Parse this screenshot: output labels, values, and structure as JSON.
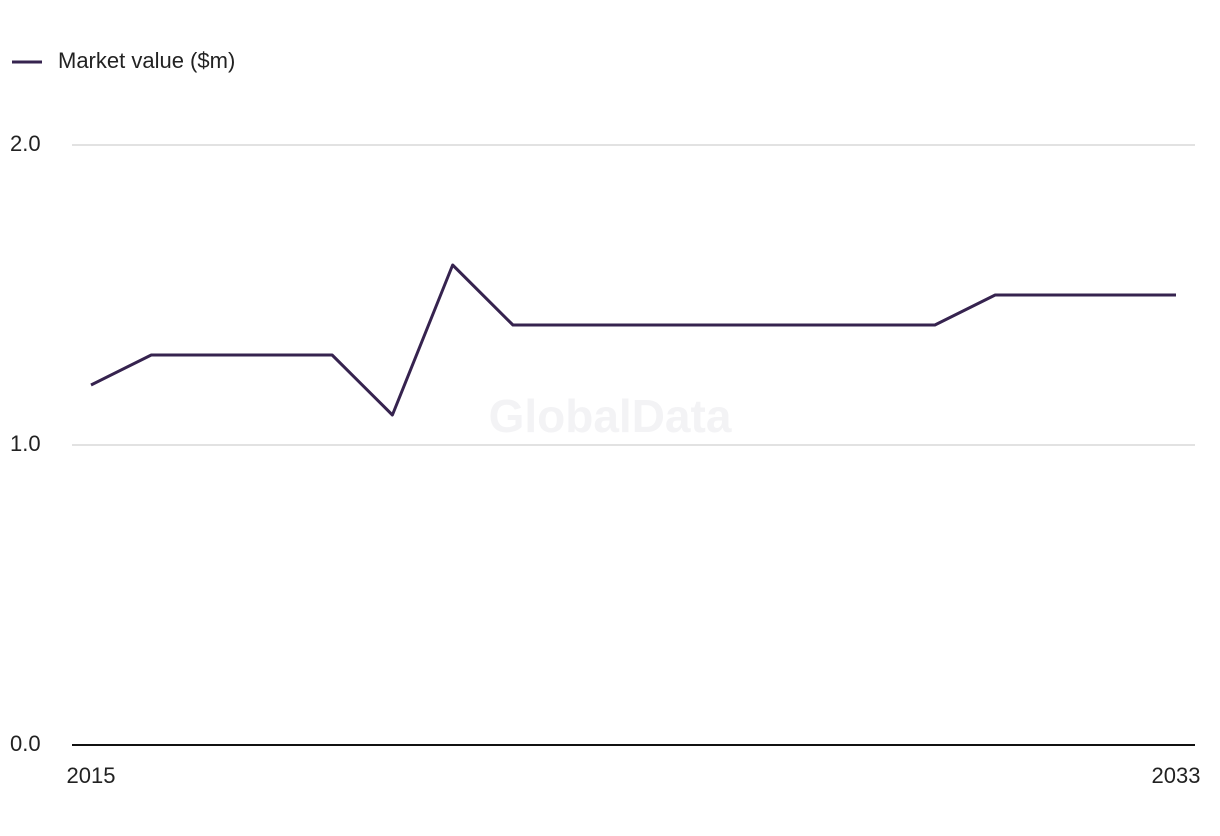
{
  "chart_data": {
    "type": "line",
    "watermark": "GlobalData",
    "x": [
      2015,
      2016,
      2017,
      2018,
      2019,
      2020,
      2021,
      2022,
      2023,
      2024,
      2025,
      2026,
      2027,
      2028,
      2029,
      2030,
      2031,
      2032,
      2033
    ],
    "xlim": [
      2015,
      2033
    ],
    "xticks": [
      2015,
      2033
    ],
    "series": [
      {
        "name": "Market value ($m)",
        "color": "#36234f",
        "values": [
          1.2,
          1.3,
          1.3,
          1.3,
          1.3,
          1.1,
          1.6,
          1.4,
          1.4,
          1.4,
          1.4,
          1.4,
          1.4,
          1.4,
          1.4,
          1.5,
          1.5,
          1.5,
          1.5
        ]
      }
    ],
    "ylim": [
      0,
      2
    ],
    "yticks": [
      {
        "value": 0,
        "label": "0.0"
      },
      {
        "value": 1,
        "label": "1.0"
      },
      {
        "value": 2,
        "label": "2.0"
      }
    ],
    "grid": true,
    "legend": "top-left"
  }
}
